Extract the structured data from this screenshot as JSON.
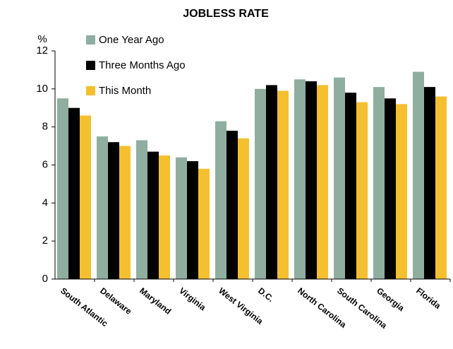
{
  "chart_data": {
    "type": "bar",
    "title": "JOBLESS RATE",
    "y_label": "%",
    "categories": [
      "South Atlantic",
      "Delaware",
      "Maryland",
      "Virginia",
      "West Virginia",
      "D.C.",
      "North Carolina",
      "South Carolina",
      "Georgia",
      "Florida"
    ],
    "series": [
      {
        "name": "One Year Ago",
        "color": "#8fae9f",
        "values": [
          9.5,
          7.5,
          7.3,
          6.4,
          8.3,
          10.0,
          10.5,
          10.6,
          10.1,
          10.9
        ]
      },
      {
        "name": "Three Months Ago",
        "color": "#000000",
        "values": [
          9.0,
          7.2,
          6.7,
          6.2,
          7.8,
          10.2,
          10.4,
          9.8,
          9.5,
          10.1
        ]
      },
      {
        "name": "This Month",
        "color": "#f5c02f",
        "values": [
          8.6,
          7.0,
          6.5,
          5.8,
          7.4,
          9.9,
          10.2,
          9.3,
          9.2,
          9.6
        ]
      }
    ],
    "ylim": [
      0,
      12
    ],
    "yticks": [
      0,
      2,
      4,
      6,
      8,
      10,
      12
    ],
    "grid": false,
    "legend": "top-left"
  }
}
